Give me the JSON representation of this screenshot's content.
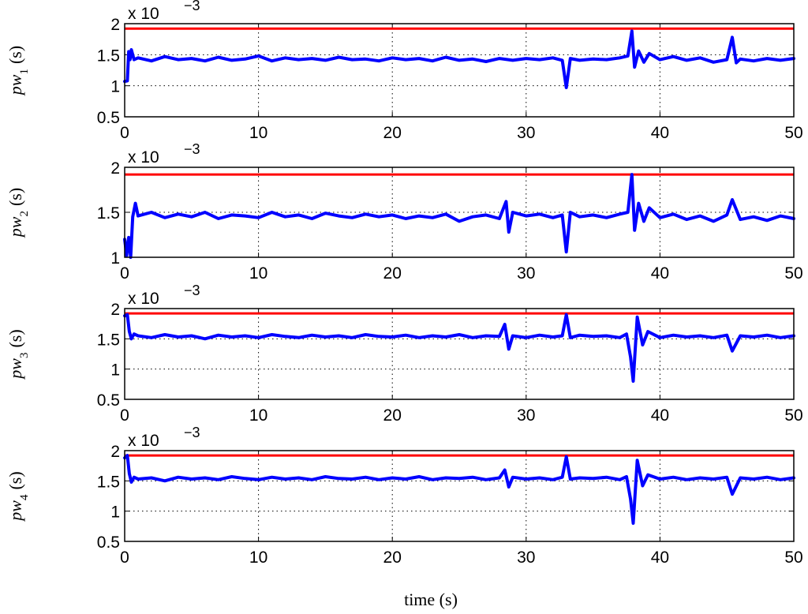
{
  "chart_data": {
    "type": "line",
    "xlabel": "time (s)",
    "xlim": [
      0,
      50
    ],
    "xticks": [
      0,
      10,
      20,
      30,
      40,
      50
    ],
    "grid": true,
    "colors": {
      "signal": "#0000ff",
      "limit": "#ff0000"
    },
    "panels": [
      {
        "ylabel": "pw",
        "ylabel_sub": "1",
        "ylabel_unit": "(s)",
        "scale_label": "x 10",
        "scale_exp": "−3",
        "ylim": [
          0.5,
          2.0
        ],
        "yticks": [
          0.5,
          1,
          1.5,
          2
        ],
        "yticklabels": [
          "0.5",
          "1",
          "1.5",
          "2"
        ],
        "limit": 1.92,
        "series": {
          "x": [
            0,
            0.2,
            0.3,
            0.4,
            0.5,
            0.7,
            1,
            2,
            3,
            4,
            5,
            6,
            7,
            8,
            9,
            10,
            11,
            12,
            13,
            14,
            15,
            16,
            17,
            18,
            19,
            20,
            21,
            22,
            23,
            24,
            25,
            26,
            27,
            28,
            29,
            30,
            31,
            32,
            32.7,
            33,
            33.3,
            34,
            35,
            36,
            37,
            37.6,
            37.9,
            38.1,
            38.4,
            38.8,
            39.2,
            40,
            41,
            42,
            43,
            44,
            45,
            45.4,
            45.7,
            46,
            47,
            48,
            49,
            50
          ],
          "y": [
            1.07,
            1.08,
            1.55,
            1.42,
            1.58,
            1.42,
            1.45,
            1.4,
            1.47,
            1.42,
            1.44,
            1.4,
            1.46,
            1.41,
            1.43,
            1.48,
            1.4,
            1.45,
            1.42,
            1.44,
            1.41,
            1.46,
            1.42,
            1.43,
            1.4,
            1.45,
            1.42,
            1.44,
            1.4,
            1.46,
            1.41,
            1.43,
            1.39,
            1.44,
            1.41,
            1.44,
            1.42,
            1.45,
            1.41,
            0.97,
            1.44,
            1.41,
            1.43,
            1.42,
            1.45,
            1.48,
            1.88,
            1.3,
            1.56,
            1.38,
            1.52,
            1.42,
            1.47,
            1.41,
            1.45,
            1.38,
            1.42,
            1.78,
            1.37,
            1.43,
            1.4,
            1.44,
            1.41,
            1.44
          ]
        }
      },
      {
        "ylabel": "pw",
        "ylabel_sub": "2",
        "ylabel_unit": "(s)",
        "scale_label": "x 10",
        "scale_exp": "−3",
        "ylim": [
          1.0,
          2.0
        ],
        "yticks": [
          1,
          1.5,
          2
        ],
        "yticklabels": [
          "1",
          "1.5",
          "2"
        ],
        "limit": 1.92,
        "series": {
          "x": [
            0,
            0.15,
            0.3,
            0.45,
            0.6,
            0.8,
            1,
            2,
            3,
            4,
            5,
            6,
            7,
            8,
            9,
            10,
            11,
            12,
            13,
            14,
            15,
            16,
            17,
            18,
            19,
            20,
            21,
            22,
            23,
            24,
            25,
            26,
            27,
            28,
            28.5,
            28.7,
            29,
            30,
            31,
            32,
            32.7,
            33,
            33.3,
            34,
            35,
            36,
            37,
            37.6,
            37.9,
            38.1,
            38.4,
            38.8,
            39.2,
            40,
            41,
            42,
            43,
            44,
            45,
            45.4,
            46,
            47,
            48,
            49,
            50
          ],
          "y": [
            1.2,
            1.02,
            1.22,
            1.0,
            1.45,
            1.6,
            1.46,
            1.5,
            1.44,
            1.48,
            1.45,
            1.5,
            1.43,
            1.47,
            1.46,
            1.44,
            1.5,
            1.45,
            1.47,
            1.43,
            1.49,
            1.46,
            1.44,
            1.48,
            1.45,
            1.47,
            1.43,
            1.46,
            1.44,
            1.48,
            1.4,
            1.45,
            1.47,
            1.43,
            1.62,
            1.28,
            1.5,
            1.46,
            1.48,
            1.44,
            1.47,
            1.06,
            1.5,
            1.45,
            1.47,
            1.44,
            1.48,
            1.5,
            1.92,
            1.3,
            1.6,
            1.4,
            1.55,
            1.44,
            1.48,
            1.42,
            1.46,
            1.4,
            1.47,
            1.64,
            1.42,
            1.45,
            1.41,
            1.46,
            1.43
          ]
        }
      },
      {
        "ylabel": "pw",
        "ylabel_sub": "3",
        "ylabel_unit": "(s)",
        "scale_label": "x 10",
        "scale_exp": "−3",
        "ylim": [
          0.5,
          2.0
        ],
        "yticks": [
          0.5,
          1,
          1.5,
          2
        ],
        "yticklabels": [
          "0.5",
          "1",
          "1.5",
          "2"
        ],
        "limit": 1.92,
        "series": {
          "x": [
            0,
            0.2,
            0.35,
            0.5,
            0.7,
            1,
            2,
            3,
            4,
            5,
            6,
            7,
            8,
            9,
            10,
            11,
            12,
            13,
            14,
            15,
            16,
            17,
            18,
            19,
            20,
            21,
            22,
            23,
            24,
            25,
            26,
            27,
            28,
            28.4,
            28.7,
            29,
            30,
            31,
            32,
            32.7,
            33,
            33.3,
            34,
            35,
            36,
            37,
            37.5,
            37.8,
            38,
            38.3,
            38.7,
            39.1,
            40,
            41,
            42,
            43,
            44,
            45,
            45.4,
            46,
            47,
            48,
            49,
            50
          ],
          "y": [
            1.88,
            1.9,
            1.62,
            1.5,
            1.58,
            1.55,
            1.52,
            1.57,
            1.53,
            1.55,
            1.5,
            1.56,
            1.53,
            1.55,
            1.52,
            1.57,
            1.54,
            1.52,
            1.56,
            1.53,
            1.55,
            1.52,
            1.57,
            1.54,
            1.53,
            1.56,
            1.52,
            1.55,
            1.53,
            1.57,
            1.52,
            1.55,
            1.54,
            1.74,
            1.33,
            1.55,
            1.52,
            1.56,
            1.53,
            1.55,
            1.9,
            1.52,
            1.56,
            1.54,
            1.55,
            1.52,
            1.58,
            1.2,
            0.8,
            1.86,
            1.4,
            1.62,
            1.52,
            1.56,
            1.53,
            1.55,
            1.52,
            1.56,
            1.3,
            1.55,
            1.53,
            1.56,
            1.52,
            1.55
          ]
        }
      },
      {
        "ylabel": "pw",
        "ylabel_sub": "4",
        "ylabel_unit": "(s)",
        "scale_label": "x 10",
        "scale_exp": "−3",
        "ylim": [
          0.5,
          2.0
        ],
        "yticks": [
          0.5,
          1,
          1.5,
          2
        ],
        "yticklabels": [
          "0.5",
          "1",
          "1.5",
          "2"
        ],
        "limit": 1.92,
        "series": {
          "x": [
            0,
            0.2,
            0.35,
            0.5,
            0.7,
            1,
            2,
            3,
            4,
            5,
            6,
            7,
            8,
            9,
            10,
            11,
            12,
            13,
            14,
            15,
            16,
            17,
            18,
            19,
            20,
            21,
            22,
            23,
            24,
            25,
            26,
            27,
            28,
            28.4,
            28.7,
            29,
            30,
            31,
            32,
            32.7,
            33,
            33.3,
            34,
            35,
            36,
            37,
            37.5,
            37.8,
            38,
            38.3,
            38.7,
            39.1,
            40,
            41,
            42,
            43,
            44,
            45,
            45.4,
            46,
            47,
            48,
            49,
            50
          ],
          "y": [
            1.88,
            1.92,
            1.62,
            1.48,
            1.56,
            1.53,
            1.55,
            1.5,
            1.56,
            1.53,
            1.55,
            1.52,
            1.57,
            1.54,
            1.52,
            1.56,
            1.53,
            1.55,
            1.52,
            1.57,
            1.54,
            1.53,
            1.56,
            1.52,
            1.55,
            1.53,
            1.57,
            1.52,
            1.55,
            1.54,
            1.56,
            1.52,
            1.55,
            1.68,
            1.4,
            1.56,
            1.53,
            1.55,
            1.52,
            1.56,
            1.9,
            1.53,
            1.55,
            1.54,
            1.56,
            1.52,
            1.57,
            1.2,
            0.8,
            1.84,
            1.42,
            1.6,
            1.53,
            1.56,
            1.52,
            1.55,
            1.53,
            1.56,
            1.28,
            1.55,
            1.53,
            1.56,
            1.52,
            1.55
          ]
        }
      }
    ]
  }
}
